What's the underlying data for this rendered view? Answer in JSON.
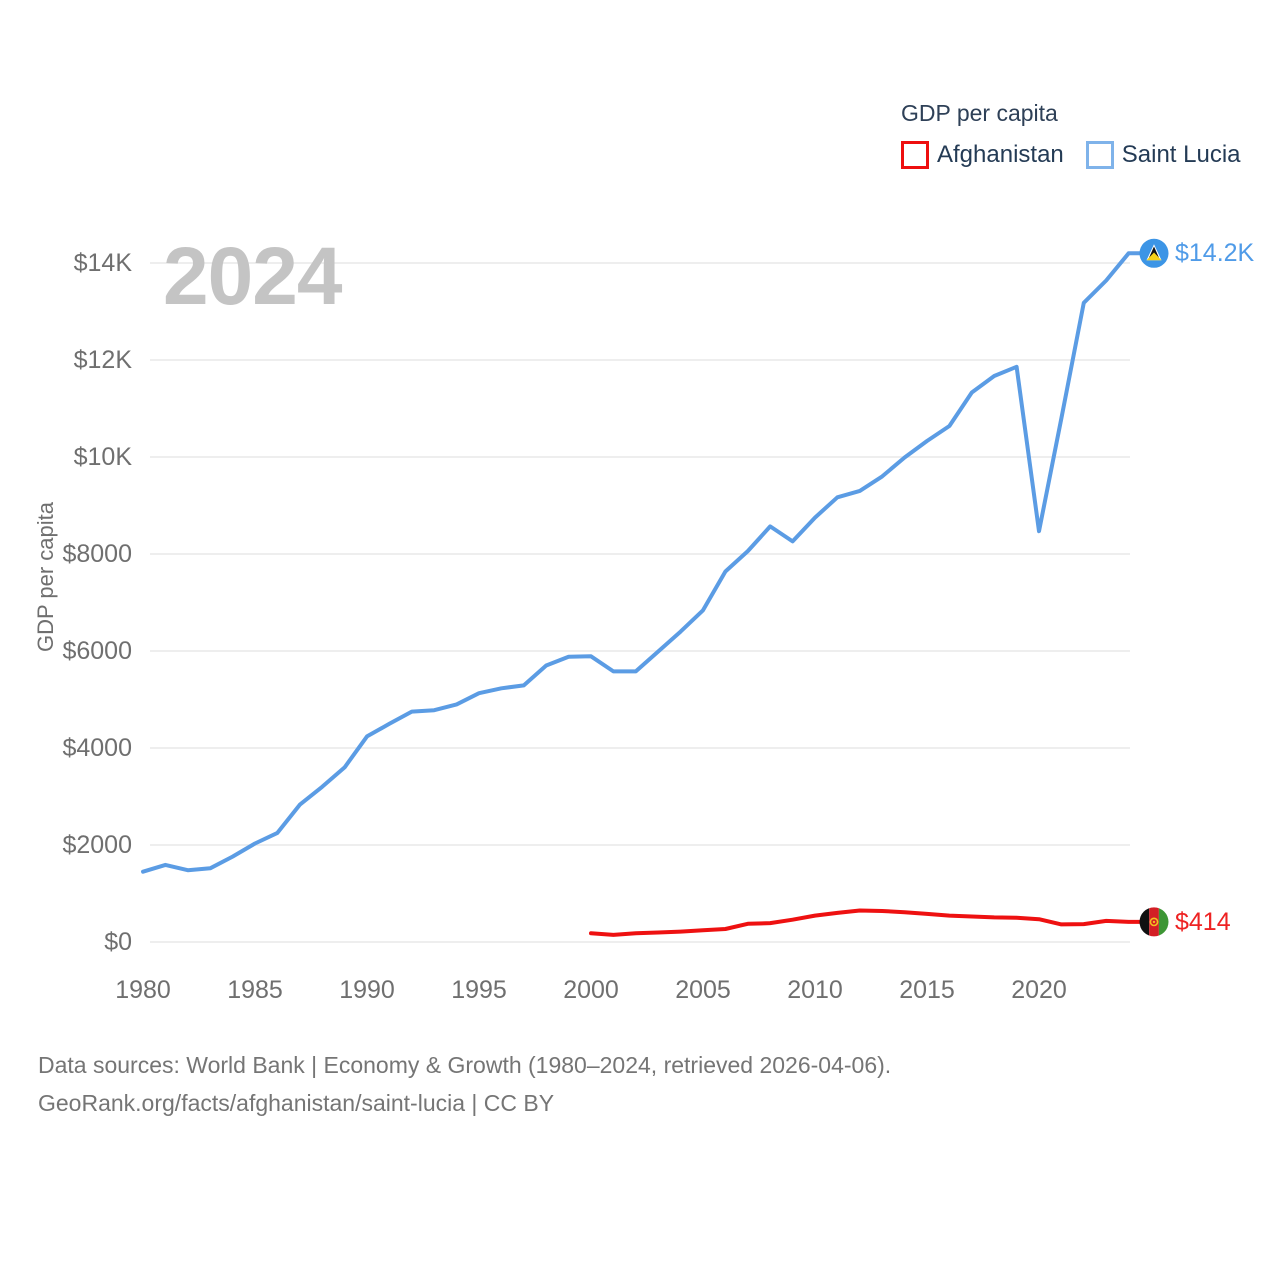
{
  "legend": {
    "title": "GDP per capita",
    "items": [
      {
        "label": "Afghanistan",
        "color": "#ee0f0f"
      },
      {
        "label": "Saint Lucia",
        "color": "#7fb3ea"
      }
    ]
  },
  "watermark": "2024",
  "axes": {
    "y_title": "GDP per capita",
    "y_ticks": [
      "$14K",
      "$12K",
      "$10K",
      "$8000",
      "$6000",
      "$4000",
      "$2000",
      "$0"
    ],
    "x_ticks": [
      "1980",
      "1985",
      "1990",
      "1995",
      "2000",
      "2005",
      "2010",
      "2015",
      "2020"
    ]
  },
  "end_labels": {
    "saint_lucia": "$14.2K",
    "afghanistan": "$414"
  },
  "source": {
    "line1": "Data sources: World Bank | Economy & Growth (1980–2024, retrieved 2026-04-06).",
    "line2": "GeoRank.org/facts/afghanistan/saint-lucia | CC BY"
  },
  "chart_data": {
    "type": "line",
    "title": "GDP per capita",
    "ylabel": "GDP per capita",
    "ylim": [
      0,
      14800
    ],
    "x_range": [
      1980,
      2024
    ],
    "grid": "horizontal",
    "legend_position": "top-right",
    "y_tick_values": [
      0,
      2000,
      4000,
      6000,
      8000,
      10000,
      12000,
      14000
    ],
    "series": [
      {
        "name": "Afghanistan",
        "color": "#ee1111",
        "end_label": "$414",
        "final_value": 414,
        "x": [
          2000,
          2001,
          2002,
          2003,
          2004,
          2005,
          2006,
          2007,
          2008,
          2009,
          2010,
          2011,
          2012,
          2013,
          2014,
          2015,
          2016,
          2017,
          2018,
          2019,
          2020,
          2021,
          2022,
          2023,
          2024
        ],
        "values": [
          182,
          147,
          179,
          196,
          215,
          242,
          268,
          375,
          390,
          460,
          545,
          600,
          650,
          640,
          615,
          580,
          545,
          525,
          508,
          498,
          470,
          362,
          370,
          435,
          414
        ]
      },
      {
        "name": "Saint Lucia",
        "color": "#5b9ce4",
        "end_label": "$14.2K",
        "final_value": 14200,
        "x": [
          1980,
          1981,
          1982,
          1983,
          1984,
          1985,
          1986,
          1987,
          1988,
          1989,
          1990,
          1991,
          1992,
          1993,
          1994,
          1995,
          1996,
          1997,
          1998,
          1999,
          2000,
          2001,
          2002,
          2003,
          2004,
          2005,
          2006,
          2007,
          2008,
          2009,
          2010,
          2011,
          2012,
          2013,
          2014,
          2015,
          2016,
          2017,
          2018,
          2019,
          2020,
          2021,
          2022,
          2023,
          2024
        ],
        "values": [
          1450,
          1590,
          1480,
          1520,
          1760,
          2030,
          2250,
          2830,
          3200,
          3600,
          4240,
          4500,
          4750,
          4780,
          4900,
          5130,
          5230,
          5290,
          5700,
          5880,
          5890,
          5580,
          5580,
          5990,
          6400,
          6840,
          7640,
          8060,
          8570,
          8260,
          8750,
          9170,
          9300,
          9600,
          9990,
          10330,
          10640,
          11330,
          11670,
          11860,
          8470,
          10800,
          13180,
          13640,
          14200
        ]
      }
    ]
  }
}
